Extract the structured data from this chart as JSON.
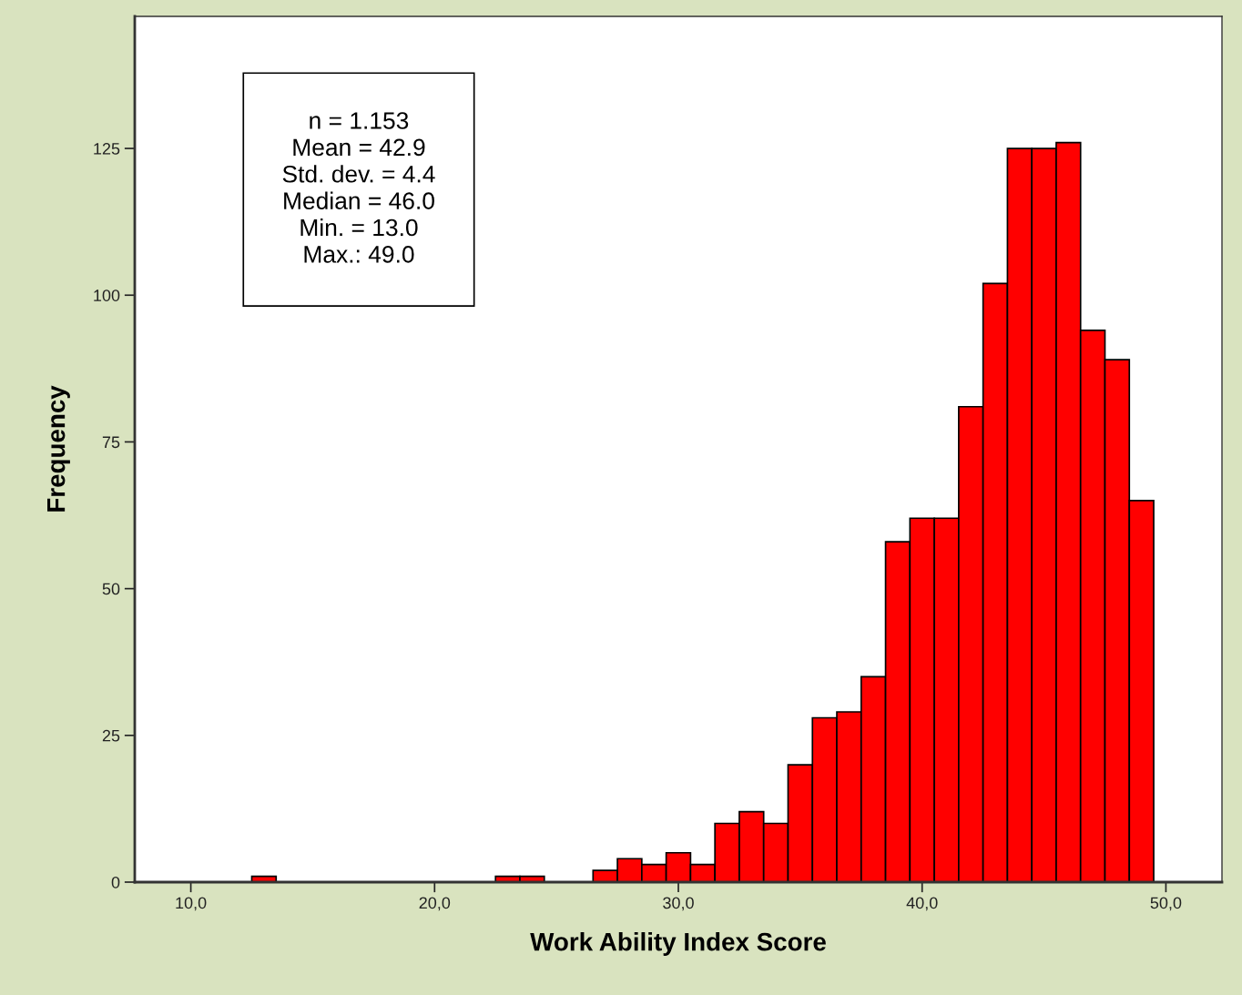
{
  "chart_data": {
    "type": "histogram",
    "xlabel": "Work Ability Index Score",
    "ylabel": "Frequency",
    "bins": [
      12.5,
      13.5,
      14.5,
      15.5,
      16.5,
      17.5,
      18.5,
      19.5,
      20.5,
      21.5,
      22.5,
      23.5,
      24.5,
      25.5,
      26.5,
      27.5,
      28.5,
      29.5,
      30.5,
      31.5,
      32.5,
      33.5,
      34.5,
      35.5,
      36.5,
      37.5,
      38.5,
      39.5,
      40.5,
      41.5,
      42.5,
      43.5,
      44.5,
      45.5,
      46.5,
      47.5,
      48.5,
      49.5
    ],
    "values": [
      1,
      0,
      0,
      0,
      0,
      0,
      0,
      0,
      0,
      0,
      1,
      1,
      0,
      0,
      2,
      4,
      3,
      5,
      3,
      10,
      12,
      10,
      20,
      28,
      29,
      35,
      58,
      62,
      62,
      81,
      102,
      125,
      125,
      126,
      94,
      89,
      65
    ],
    "color": "#ff0000",
    "xlim": [
      7.7,
      52.3
    ],
    "ylim": [
      0,
      147.5
    ],
    "xticks": [
      {
        "value": 10,
        "label": "10,0"
      },
      {
        "value": 20,
        "label": "20,0"
      },
      {
        "value": 30,
        "label": "30,0"
      },
      {
        "value": 40,
        "label": "40,0"
      },
      {
        "value": 50,
        "label": "50,0"
      }
    ],
    "yticks": [
      0,
      25,
      50,
      75,
      100,
      125
    ],
    "grid": false,
    "annotations": [
      "n = 1.153\nMean = 42.9\nStd. dev. = 4.4\nMedian = 46.0\nMin. = 13.0\nMax.: 49.0"
    ]
  }
}
